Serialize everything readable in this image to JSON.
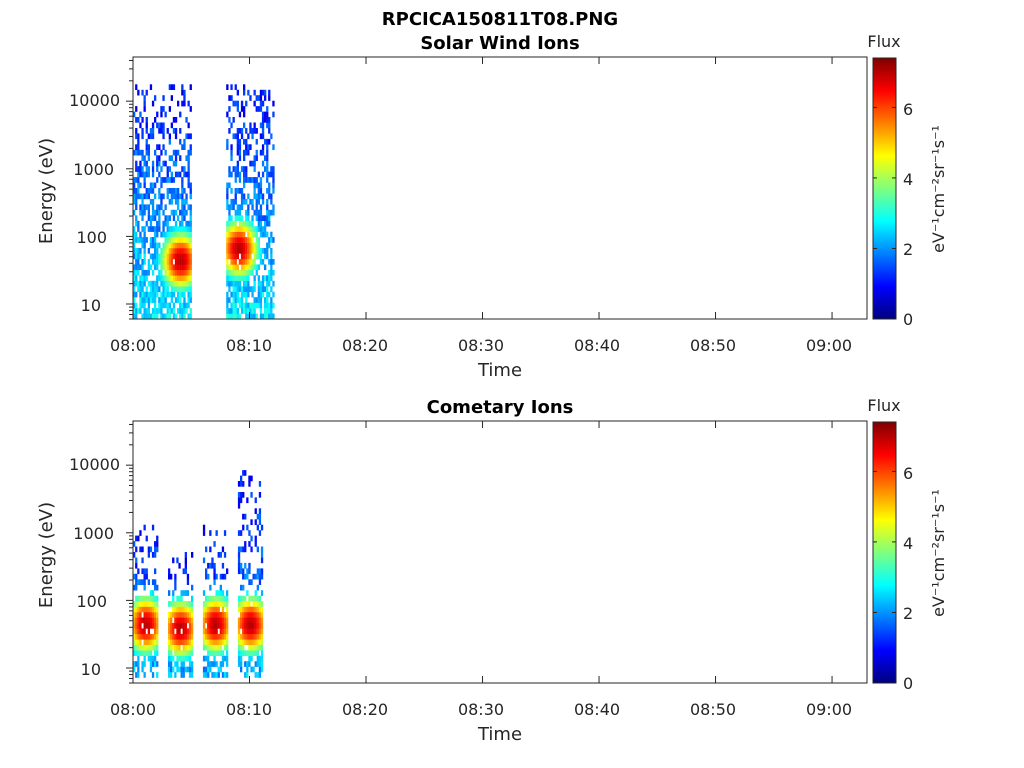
{
  "figure_title": "RPCICA150811T08.PNG",
  "colors": {
    "axis": "#262626",
    "colormap": [
      "#00007f",
      "#0000ff",
      "#007fff",
      "#00ffff",
      "#7fff7f",
      "#ffff00",
      "#ff7f00",
      "#ff0000",
      "#7f0000"
    ]
  },
  "chart_data": [
    {
      "type": "heatmap",
      "title": "Solar Wind Ions",
      "xlabel": "Time",
      "ylabel": "Energy (eV)",
      "x_ticks": [
        "08:00",
        "08:10",
        "08:20",
        "08:30",
        "08:40",
        "08:50",
        "09:00"
      ],
      "xlim": [
        "08:00",
        "09:03"
      ],
      "y_scale": "log",
      "y_ticks": [
        "10",
        "100",
        "1000",
        "10000"
      ],
      "ylim": [
        6,
        45000
      ],
      "colorbar": {
        "title": "Flux",
        "label": "eV⁻¹cm⁻²sr⁻¹s⁻¹",
        "ticks": [
          "0",
          "2",
          "4",
          "6"
        ],
        "range": [
          0,
          7.4
        ]
      },
      "data_time_span": [
        "08:00",
        "08:12"
      ],
      "features": [
        {
          "time_range": [
            "08:00",
            "08:05"
          ],
          "energy_range_eV": [
            6,
            15000
          ],
          "flux_range": [
            1,
            7
          ],
          "peak": {
            "time": "08:04",
            "energy_eV": 40,
            "flux": 7
          }
        },
        {
          "time_range": [
            "08:08",
            "08:12"
          ],
          "energy_range_eV": [
            6,
            15000
          ],
          "flux_range": [
            1,
            7
          ],
          "peak": {
            "time": "08:09",
            "energy_eV": 60,
            "flux": 7
          }
        }
      ]
    },
    {
      "type": "heatmap",
      "title": "Cometary Ions",
      "xlabel": "Time",
      "ylabel": "Energy (eV)",
      "x_ticks": [
        "08:00",
        "08:10",
        "08:20",
        "08:30",
        "08:40",
        "08:50",
        "09:00"
      ],
      "xlim": [
        "08:00",
        "09:03"
      ],
      "y_scale": "log",
      "y_ticks": [
        "10",
        "100",
        "1000",
        "10000"
      ],
      "ylim": [
        6,
        45000
      ],
      "colorbar": {
        "title": "Flux",
        "label": "eV⁻¹cm⁻²sr⁻¹s⁻¹",
        "ticks": [
          "0",
          "2",
          "4",
          "6"
        ],
        "range": [
          0,
          7.4
        ]
      },
      "data_time_span": [
        "08:00",
        "08:12"
      ],
      "features": [
        {
          "time_range": [
            "08:00",
            "08:02"
          ],
          "energy_range_eV": [
            8,
            1200
          ],
          "peak": {
            "time": "08:01",
            "energy_eV": 40,
            "flux": 7
          }
        },
        {
          "time_range": [
            "08:03",
            "08:05"
          ],
          "energy_range_eV": [
            8,
            600
          ],
          "peak": {
            "time": "08:04",
            "energy_eV": 35,
            "flux": 7
          }
        },
        {
          "time_range": [
            "08:06",
            "08:08"
          ],
          "energy_range_eV": [
            8,
            1200
          ],
          "peak": {
            "time": "08:07",
            "energy_eV": 40,
            "flux": 7
          }
        },
        {
          "time_range": [
            "08:09",
            "08:11"
          ],
          "energy_range_eV": [
            8,
            8000
          ],
          "peak": {
            "time": "08:10",
            "energy_eV": 40,
            "flux": 7
          }
        }
      ]
    }
  ]
}
